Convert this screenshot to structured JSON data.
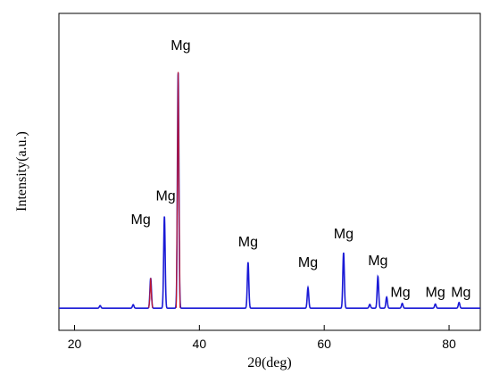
{
  "chart_data": {
    "type": "line",
    "title": "",
    "xlabel": "2θ(deg)",
    "ylabel": "Intensity(a.u.)",
    "xlim": [
      17.5,
      85
    ],
    "ylim": [
      0,
      100
    ],
    "xticks": [
      20,
      40,
      60,
      80
    ],
    "grid": false,
    "legend": "none",
    "series": [
      {
        "color": "#1a1ad6",
        "baseline": 7,
        "peaks": [
          {
            "x": 24.1,
            "y": 7.8,
            "w": 0.12
          },
          {
            "x": 29.4,
            "y": 8.1,
            "w": 0.12
          },
          {
            "x": 32.2,
            "y": 16.5,
            "w": 0.12
          },
          {
            "x": 34.4,
            "y": 36.0,
            "w": 0.12
          },
          {
            "x": 36.6,
            "y": 81.5,
            "w": 0.12
          },
          {
            "x": 47.8,
            "y": 21.5,
            "w": 0.12
          },
          {
            "x": 57.4,
            "y": 13.5,
            "w": 0.12
          },
          {
            "x": 63.1,
            "y": 24.5,
            "w": 0.12
          },
          {
            "x": 67.3,
            "y": 8.2,
            "w": 0.12
          },
          {
            "x": 68.6,
            "y": 17.0,
            "w": 0.12
          },
          {
            "x": 70.0,
            "y": 10.5,
            "w": 0.12
          },
          {
            "x": 72.5,
            "y": 8.5,
            "w": 0.12
          },
          {
            "x": 77.8,
            "y": 8.3,
            "w": 0.12
          },
          {
            "x": 81.6,
            "y": 8.8,
            "w": 0.12
          }
        ]
      },
      {
        "color": "#c0182f",
        "segments": [
          {
            "x": [
              31.9,
              32.05,
              32.2,
              32.35,
              32.5
            ],
            "y": [
              7.1,
              10.0,
              16.5,
              10.0,
              7.1
            ]
          },
          {
            "x": [
              36.3,
              36.45,
              36.6,
              36.75,
              36.9
            ],
            "y": [
              7.1,
              40.0,
              81.5,
              40.0,
              7.1
            ]
          }
        ]
      }
    ],
    "annotations": [
      {
        "text": "Mg",
        "x": 37.0,
        "y": 88.5
      },
      {
        "text": "Mg",
        "x": 30.6,
        "y": 33.5
      },
      {
        "text": "Mg",
        "x": 34.6,
        "y": 41.0
      },
      {
        "text": "Mg",
        "x": 47.8,
        "y": 26.5
      },
      {
        "text": "Mg",
        "x": 57.4,
        "y": 20.0
      },
      {
        "text": "Mg",
        "x": 63.1,
        "y": 29.0
      },
      {
        "text": "Mg",
        "x": 68.6,
        "y": 20.5
      },
      {
        "text": "Mg",
        "x": 72.2,
        "y": 10.5
      },
      {
        "text": "Mg",
        "x": 77.8,
        "y": 10.5
      },
      {
        "text": "Mg",
        "x": 81.9,
        "y": 10.5
      }
    ]
  }
}
